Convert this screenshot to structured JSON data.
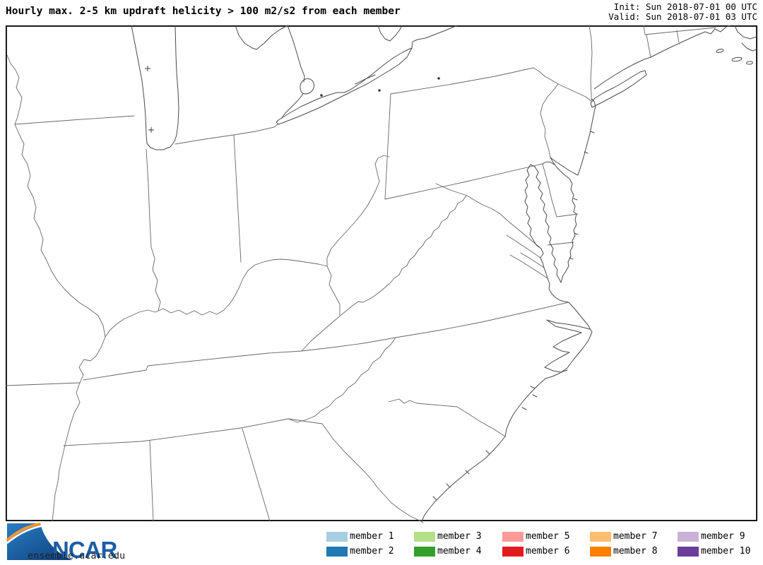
{
  "header": {
    "title": "Hourly max. 2-5 km updraft helicity > 100 m2/s2 from each member",
    "init_line": "Init: Sun 2018-07-01 00 UTC",
    "valid_line": "Valid: Sun 2018-07-01 03 UTC"
  },
  "map": {
    "region": "Eastern United States: Great Lakes to Georgia, Mississippi River to Atlantic coast",
    "content": "Blank state-outline basemap; no helicity swaths plotted at this hour",
    "line_color": "#666666",
    "coast_color": "#4a4a4a",
    "frame_color": "#000000"
  },
  "legend": {
    "members": [
      {
        "label": "member 1",
        "color": "#a6cee3"
      },
      {
        "label": "member 2",
        "color": "#1f78b4"
      },
      {
        "label": "member 3",
        "color": "#b2df8a"
      },
      {
        "label": "member 4",
        "color": "#33a02c"
      },
      {
        "label": "member 5",
        "color": "#fb9a99"
      },
      {
        "label": "member 6",
        "color": "#e31a1c"
      },
      {
        "label": "member 7",
        "color": "#fdbf6f"
      },
      {
        "label": "member 8",
        "color": "#ff7f00"
      },
      {
        "label": "member 9",
        "color": "#cab2d6"
      },
      {
        "label": "member 10",
        "color": "#6a3d9a"
      }
    ]
  },
  "footer": {
    "logo_text": "NCAR",
    "site_url": "ensemble.ucar.edu",
    "logo_blue": "#1b5ea6",
    "logo_orange": "#f69532"
  }
}
